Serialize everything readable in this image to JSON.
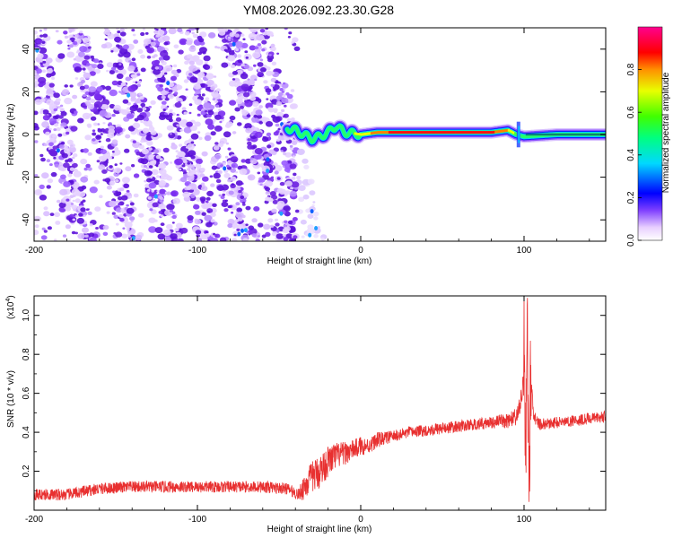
{
  "title": "YM08.2026.092.23.30.G28",
  "chart_data": [
    {
      "type": "heatmap",
      "name": "spectrogram",
      "title": "YM08.2026.092.23.30.G28",
      "xlabel": "Height of straight line (km)",
      "ylabel": "Frequency (Hz)",
      "xlim": [
        -200,
        150
      ],
      "ylim": [
        -50,
        50
      ],
      "xticks": [
        -200,
        -100,
        0,
        100
      ],
      "yticks": [
        -40,
        -20,
        0,
        20,
        40
      ],
      "xtick_labels": [
        "-200",
        "-100",
        "0",
        "100"
      ],
      "ytick_labels": [
        "-40",
        "-20",
        "0",
        "20",
        "40"
      ],
      "colorbar": {
        "label": "Normalized spectral amplitude",
        "range": [
          0,
          1
        ],
        "ticks": [
          0.0,
          0.2,
          0.4,
          0.6,
          0.8
        ],
        "tick_labels": [
          "0.0",
          "0.2",
          "0.4",
          "0.6",
          "0.8"
        ],
        "colors": [
          "#ffffff",
          "#8040ff",
          "#0000ff",
          "#00ffff",
          "#00ff00",
          "#ffff00",
          "#ff0000",
          "#ff00a0"
        ]
      },
      "noise_region_x": [
        -200,
        -40
      ],
      "noise_stripes_center_x_at_zero_freq": [
        -185,
        -158,
        -133,
        -110,
        -88,
        -63,
        -45
      ],
      "noise_stripe_slope_km_per_hz": -0.35,
      "signal_line": {
        "x": [
          -45,
          -40,
          -35,
          -30,
          -25,
          -20,
          -15,
          -10,
          0,
          10,
          20,
          40,
          60,
          80,
          90,
          95,
          100,
          120,
          150
        ],
        "freq_hz": [
          3,
          2,
          0,
          -2,
          -1,
          1,
          4,
          1,
          0,
          1,
          1,
          1,
          1,
          1,
          2,
          0,
          -1,
          0,
          0
        ],
        "amplitude": [
          0.2,
          0.25,
          0.25,
          0.3,
          0.3,
          0.35,
          0.3,
          0.4,
          0.75,
          0.85,
          0.9,
          0.95,
          0.95,
          0.9,
          0.8,
          0.5,
          0.4,
          0.45,
          0.45
        ]
      }
    },
    {
      "type": "line",
      "name": "snr",
      "xlabel": "Height of straight line (km)",
      "ylabel": "SNR (10 * v/v)",
      "yscale_label": "(x10",
      "yscale_exponent": "4",
      "yscale_close": ")",
      "xlim": [
        -200,
        150
      ],
      "ylim": [
        0,
        1.1
      ],
      "xticks": [
        -200,
        -100,
        0,
        100
      ],
      "yticks": [
        0.2,
        0.4,
        0.6,
        0.8,
        1.0
      ],
      "xtick_labels": [
        "-200",
        "-100",
        "0",
        "100"
      ],
      "ytick_labels": [
        "0.2",
        "0.4",
        "0.6",
        "0.8",
        "1.0"
      ],
      "series": [
        {
          "name": "SNR",
          "color": "#e83030",
          "x": [
            -200,
            -180,
            -160,
            -140,
            -120,
            -100,
            -80,
            -60,
            -45,
            -38,
            -35,
            -30,
            -25,
            -20,
            -15,
            -10,
            -5,
            0,
            5,
            10,
            20,
            30,
            40,
            50,
            60,
            70,
            80,
            90,
            96,
            99,
            100,
            101,
            102,
            103,
            104,
            106,
            110,
            120,
            130,
            140,
            150
          ],
          "y": [
            0.08,
            0.08,
            0.11,
            0.12,
            0.12,
            0.12,
            0.12,
            0.12,
            0.11,
            0.08,
            0.12,
            0.17,
            0.2,
            0.25,
            0.28,
            0.29,
            0.31,
            0.33,
            0.33,
            0.36,
            0.38,
            0.4,
            0.41,
            0.42,
            0.43,
            0.44,
            0.45,
            0.46,
            0.48,
            0.6,
            0.9,
            0.15,
            0.95,
            0.05,
            0.7,
            0.48,
            0.44,
            0.45,
            0.46,
            0.47,
            0.48
          ],
          "noise_amplitude": [
            0.03,
            0.03,
            0.03,
            0.03,
            0.03,
            0.03,
            0.03,
            0.03,
            0.03,
            0.03,
            0.07,
            0.08,
            0.09,
            0.08,
            0.07,
            0.06,
            0.05,
            0.05,
            0.04,
            0.04,
            0.03,
            0.03,
            0.03,
            0.03,
            0.03,
            0.03,
            0.03,
            0.04,
            0.05,
            0.05,
            0.05,
            0.05,
            0.05,
            0.05,
            0.05,
            0.03,
            0.03,
            0.03,
            0.03,
            0.03,
            0.03
          ]
        }
      ]
    }
  ]
}
